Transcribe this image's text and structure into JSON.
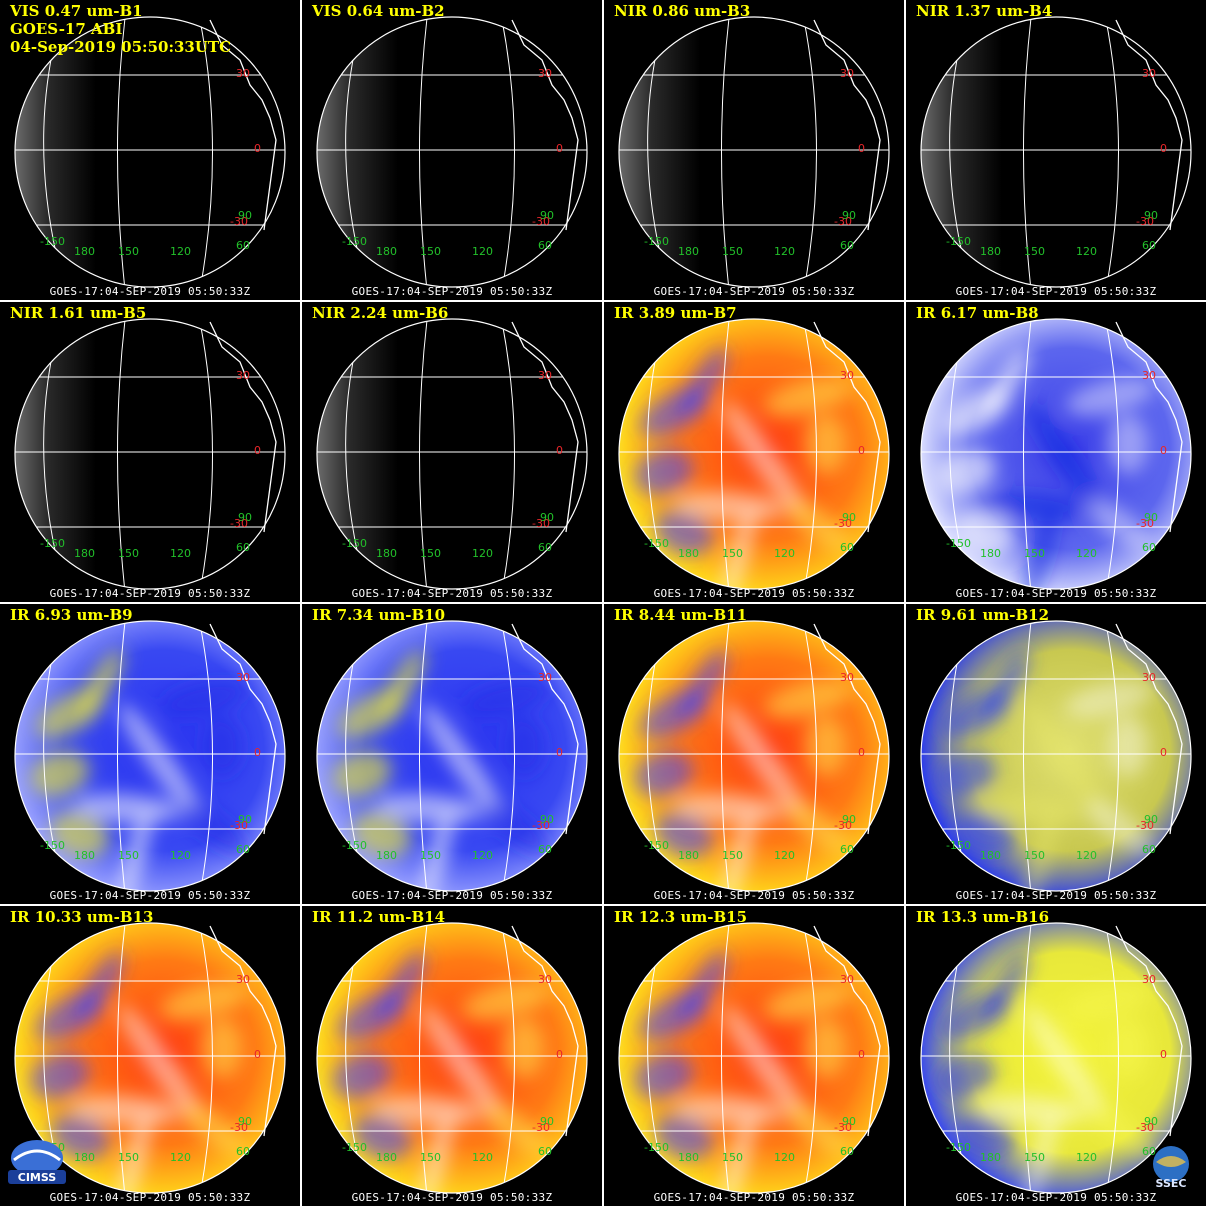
{
  "header": {
    "line2": "GOES-17 ABI",
    "line3": "04-Sep-2019 05:50:33UTC"
  },
  "footer_text": "GOES-17:04-SEP-2019 05:50:33Z",
  "grid_labels": {
    "lat": [
      "30",
      "0",
      "-30"
    ],
    "lon_left": [
      "-150",
      "180",
      "150",
      "120",
      "60"
    ],
    "lon_extra": "90"
  },
  "logos": {
    "left": "CIMSS",
    "right": "SSEC"
  },
  "colors": {
    "title": "#ffff00",
    "lat_label": "#e8262a",
    "lon_label": "#22c02a",
    "grid_line": "#ffffff"
  },
  "panels": [
    {
      "title": "VIS 0.47 um-B1",
      "style": "vis"
    },
    {
      "title": "VIS 0.64 um-B2",
      "style": "vis"
    },
    {
      "title": "NIR 0.86 um-B3",
      "style": "vis"
    },
    {
      "title": "NIR 1.37 um-B4",
      "style": "vis"
    },
    {
      "title": "NIR 1.61 um-B5",
      "style": "vis"
    },
    {
      "title": "NIR 2.24 um-B6",
      "style": "vis"
    },
    {
      "title": "IR 3.89 um-B7",
      "style": "ir"
    },
    {
      "title": "IR 6.17 um-B8",
      "style": "wv-white"
    },
    {
      "title": "IR 6.93 um-B9",
      "style": "wv"
    },
    {
      "title": "IR 7.34 um-B10",
      "style": "wv"
    },
    {
      "title": "IR 8.44 um-B11",
      "style": "ir"
    },
    {
      "title": "IR 9.61 um-B12",
      "style": "oz"
    },
    {
      "title": "IR 10.33 um-B13",
      "style": "ir"
    },
    {
      "title": "IR 11.2 um-B14",
      "style": "ir"
    },
    {
      "title": "IR 12.3 um-B15",
      "style": "ir"
    },
    {
      "title": "IR 13.3 um-B16",
      "style": "co2"
    }
  ]
}
